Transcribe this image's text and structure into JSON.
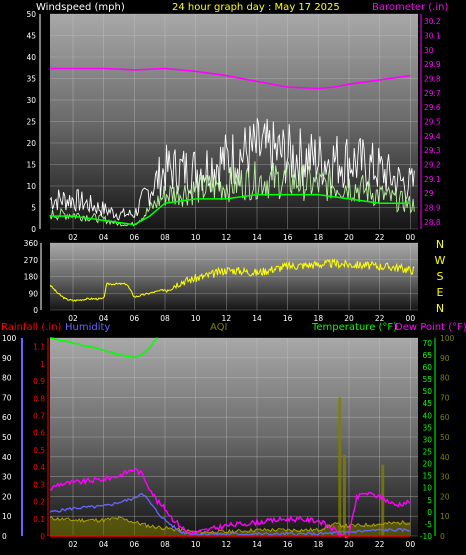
{
  "title": "24 hour graph day : May 17 2025",
  "colors": {
    "background": "#000000",
    "wind_speed": "#ffffff",
    "wind_gust": "#00ff00",
    "wind_avg": "#ffffff",
    "barometer": "#ff00ff",
    "wind_direction": "#ffff00",
    "rainfall": "#ff0000",
    "humidity": "#6666ff",
    "aqi": "#808000",
    "temperature": "#00ff00",
    "dew_point": "#ff00ff",
    "title": "#ffff00",
    "direction_letters": "#ffff00"
  },
  "chart_data": [
    {
      "type": "line",
      "panel": "wind_barometer",
      "left_axis_label": "Windspeed (mph)",
      "right_axis_label": "Barometer (.in)",
      "x_ticks": [
        "02",
        "04",
        "06",
        "08",
        "10",
        "12",
        "14",
        "16",
        "18",
        "20",
        "22",
        "00"
      ],
      "x_hours": [
        2,
        4,
        6,
        8,
        10,
        12,
        14,
        16,
        18,
        20,
        22,
        24
      ],
      "x_range": [
        0.5,
        24.5
      ],
      "left_ticks": [
        "0",
        "5",
        "10",
        "15",
        "20",
        "25",
        "30",
        "35",
        "40",
        "45",
        "50"
      ],
      "left_range": [
        0,
        50
      ],
      "right_ticks": [
        "28.8",
        "28.9",
        "29",
        "29.1",
        "29.2",
        "29.3",
        "29.4",
        "29.5",
        "29.6",
        "29.7",
        "29.8",
        "29.9",
        "30",
        "30.1",
        "30.2"
      ],
      "right_range": [
        28.75,
        30.25
      ],
      "series": [
        {
          "key": "wind_gust",
          "hours": [
            0.5,
            2,
            4,
            5,
            6,
            7,
            8,
            10,
            12,
            14,
            16,
            18,
            20,
            22,
            23,
            24
          ],
          "values": [
            6,
            6,
            4,
            3,
            3,
            8,
            12,
            12,
            14,
            16,
            15,
            14,
            14,
            12,
            10,
            9
          ]
        },
        {
          "key": "wind_speed",
          "hours": [
            0.5,
            2,
            4,
            5,
            6,
            7,
            8,
            10,
            12,
            14,
            16,
            18,
            20,
            22,
            23,
            24
          ],
          "values": [
            3,
            3,
            2,
            1,
            1,
            4,
            7,
            8,
            9,
            10,
            10,
            9,
            9,
            7,
            6,
            5
          ]
        },
        {
          "key": "wind_avg",
          "hours": [
            0.5,
            2,
            4,
            6,
            7,
            8,
            10,
            12,
            14,
            16,
            18,
            20,
            22,
            24
          ],
          "values": [
            3,
            3,
            2,
            1,
            3,
            6,
            7,
            7,
            8,
            8,
            8,
            7,
            6,
            6
          ]
        },
        {
          "key": "barometer",
          "hours": [
            0.5,
            2,
            4,
            6,
            8,
            10,
            12,
            14,
            16,
            18,
            19,
            20,
            22,
            24
          ],
          "values": [
            29.87,
            29.87,
            29.87,
            29.86,
            29.87,
            29.85,
            29.82,
            29.78,
            29.74,
            29.73,
            29.74,
            29.76,
            29.79,
            29.82
          ]
        }
      ]
    },
    {
      "type": "line",
      "panel": "wind_direction",
      "x_ticks": [
        "02",
        "04",
        "06",
        "08",
        "10",
        "12",
        "14",
        "16",
        "18",
        "20",
        "22",
        "00"
      ],
      "x_hours": [
        2,
        4,
        6,
        8,
        10,
        12,
        14,
        16,
        18,
        20,
        22,
        24
      ],
      "x_range": [
        0.5,
        24.5
      ],
      "left_ticks": [
        "0",
        "90",
        "180",
        "270",
        "360"
      ],
      "left_range": [
        0,
        360
      ],
      "direction_letters": [
        "N",
        "W",
        "S",
        "E",
        "N"
      ],
      "series": [
        {
          "key": "wind_direction",
          "hours": [
            0.5,
            1,
            1.5,
            2,
            3,
            4,
            4.2,
            5,
            5.5,
            6,
            7,
            8,
            9,
            10,
            11,
            12,
            13,
            14,
            15,
            16,
            17,
            18,
            19,
            20,
            21,
            22,
            23,
            24
          ],
          "values": [
            135,
            90,
            60,
            50,
            60,
            60,
            140,
            140,
            140,
            70,
            90,
            110,
            150,
            170,
            190,
            215,
            210,
            200,
            220,
            235,
            240,
            245,
            250,
            245,
            240,
            235,
            230,
            215
          ]
        }
      ]
    },
    {
      "type": "line",
      "panel": "temperature_humidity",
      "labels": {
        "rainfall": "Rainfall (.in)",
        "humidity": "Humidity",
        "aqi": "AQI",
        "temperature": "Temperature (°F)",
        "dew_point": "Dew Point (°F)"
      },
      "x_ticks": [
        "02",
        "04",
        "06",
        "08",
        "10",
        "12",
        "14",
        "16",
        "18",
        "20",
        "22",
        "00"
      ],
      "x_hours": [
        2,
        4,
        6,
        8,
        10,
        12,
        14,
        16,
        18,
        20,
        22,
        24
      ],
      "x_range": [
        0.5,
        24.5
      ],
      "humidity_ticks": [
        "0",
        "10",
        "20",
        "30",
        "40",
        "50",
        "60",
        "70",
        "80",
        "90",
        "100"
      ],
      "humidity_range": [
        0,
        100
      ],
      "rain_ticks": [
        "0",
        "0.1",
        "0.2",
        "0.3",
        "0.4",
        "0.5",
        "0.6",
        "0.7",
        "0.8",
        "0.9",
        "1",
        "1.1"
      ],
      "rain_range": [
        0,
        1.15
      ],
      "temp_ticks": [
        "-10",
        "-5",
        "0",
        "5",
        "10",
        "15",
        "20",
        "25",
        "30",
        "35",
        "40",
        "45",
        "50",
        "55",
        "60",
        "65",
        "70"
      ],
      "temp_range": [
        -10,
        72
      ],
      "aqi_ticks": [
        "0",
        "10",
        "20",
        "30",
        "40",
        "50",
        "60",
        "70",
        "80",
        "90",
        "100"
      ],
      "aqi_range": [
        0,
        100
      ],
      "series": [
        {
          "key": "temperature",
          "hours": [
            0.5,
            2,
            4,
            5,
            6,
            6.5,
            7,
            7.5
          ],
          "values": [
            72,
            70,
            67,
            65,
            64,
            65,
            68,
            72
          ]
        },
        {
          "key": "dew_point",
          "hours": [
            0.5,
            1,
            2,
            3,
            4,
            5,
            5.5,
            6,
            6.5,
            7,
            7.5,
            8,
            8.5,
            9,
            9.5,
            10,
            11,
            12,
            14,
            16,
            18,
            19,
            19.5,
            20,
            20.5,
            21,
            22,
            23,
            24
          ],
          "values": [
            0.27,
            0.3,
            0.31,
            0.32,
            0.33,
            0.35,
            0.37,
            0.39,
            0.36,
            0.28,
            0.2,
            0.16,
            0.1,
            0.06,
            0.02,
            0.02,
            0.04,
            0.06,
            0.08,
            0.1,
            0.09,
            0.04,
            0.0,
            0.0,
            0.22,
            0.25,
            0.23,
            0.18,
            0.2
          ]
        },
        {
          "key": "humidity",
          "hours": [
            0.5,
            2,
            4,
            5,
            6,
            6.5,
            7,
            7.5,
            8,
            8.5,
            9,
            10,
            12,
            14,
            16,
            18,
            20,
            22,
            24
          ],
          "values": [
            12,
            14,
            15,
            17,
            19,
            22,
            17,
            12,
            8,
            5,
            2,
            1,
            1,
            1,
            1,
            1,
            2,
            3,
            3
          ]
        },
        {
          "key": "aqi",
          "hours": [
            0.5,
            2,
            4,
            5,
            6,
            6.5,
            7,
            8,
            9,
            10,
            12,
            14,
            16,
            18,
            19,
            20,
            22,
            24
          ],
          "values": [
            9,
            8,
            8,
            9,
            7,
            6,
            5,
            4,
            3,
            2,
            2,
            3,
            3,
            3,
            6,
            5,
            6,
            7
          ]
        },
        {
          "key": "aqi_spikes",
          "hours": [
            19.4,
            19.7,
            22.2
          ],
          "values": [
            70,
            41,
            36
          ]
        },
        {
          "key": "rainfall",
          "hours": [
            0.5,
            24
          ],
          "values": [
            0,
            0
          ]
        }
      ]
    }
  ]
}
